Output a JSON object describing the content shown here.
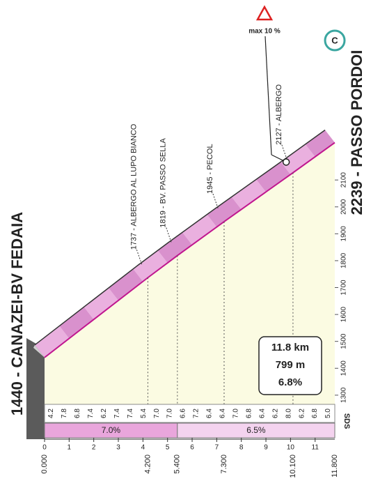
{
  "chart_data": {
    "type": "climb-profile",
    "start_label": "1440 - CANAZEI-BV FEDAIA",
    "finish_label": "2239 - PASSO PORDOI",
    "finish_badge": "C",
    "max_gradient_label": "max 10 %",
    "summary": [
      "11.8 km",
      "799 m",
      "6.8%"
    ],
    "x": [
      0,
      4.2,
      5.4,
      7.3,
      10.1,
      11.8
    ],
    "values": [
      1440,
      1737,
      1819,
      1945,
      2127,
      2239
    ],
    "point_labels": [
      null,
      "1737 - ALBERGO AL LUPO BIANCO",
      "1819 - BV. PASSO SELLA",
      "1945 - PECOL",
      "2127 - ALBERGO",
      null
    ],
    "point_ticks": [
      {
        "value": 0,
        "label": "0.000"
      },
      {
        "value": 4.2,
        "label": "4.200"
      },
      {
        "value": 5.4,
        "label": "5.400"
      },
      {
        "value": 7.3,
        "label": "7.300"
      },
      {
        "value": 10.1,
        "label": "10.100"
      },
      {
        "value": 11.8,
        "label": "11.800"
      }
    ],
    "gradients": {
      "values": [
        4.2,
        7.8,
        6.8,
        7.4,
        6.2,
        7.4,
        7.4,
        5.4,
        7,
        7,
        6.6,
        7.2,
        6.4,
        6.4,
        7,
        6.8,
        6.4,
        6.2,
        8,
        6.2,
        6.8,
        5
      ],
      "value_labels": [
        "4.2",
        "7.8",
        "6.8",
        "7.4",
        "6.2",
        "7.4",
        "7.4",
        "5.4",
        "7.0",
        "7.0",
        "6.6",
        "7.2",
        "6.4",
        "6.4",
        "7.0",
        "6.8",
        "6.4",
        "6.2",
        "8.0",
        "6.2",
        "6.8",
        "5.0"
      ]
    },
    "sectors": [
      {
        "from": 0,
        "to": 5.4,
        "value": 7,
        "label": "7.0%",
        "color": "#e9a6dc"
      },
      {
        "from": 5.4,
        "to": 11.8,
        "value": 6.5,
        "label": "6.5%",
        "color": "#f4d3ef"
      }
    ],
    "xlim": [
      0,
      11.8
    ],
    "xticks": [
      0,
      1,
      2,
      3,
      4,
      5,
      6,
      7,
      8,
      9,
      10,
      11
    ],
    "ylim": [
      1240,
      2300
    ],
    "yticks": [
      1300,
      1400,
      1500,
      1600,
      1700,
      1800,
      1900,
      2000,
      2100
    ],
    "colors": {
      "line": "#c0168f",
      "ribbon": [
        "#eab0df",
        "#d991cd"
      ],
      "area": "#fbfbe2"
    },
    "logo": "SDS"
  }
}
